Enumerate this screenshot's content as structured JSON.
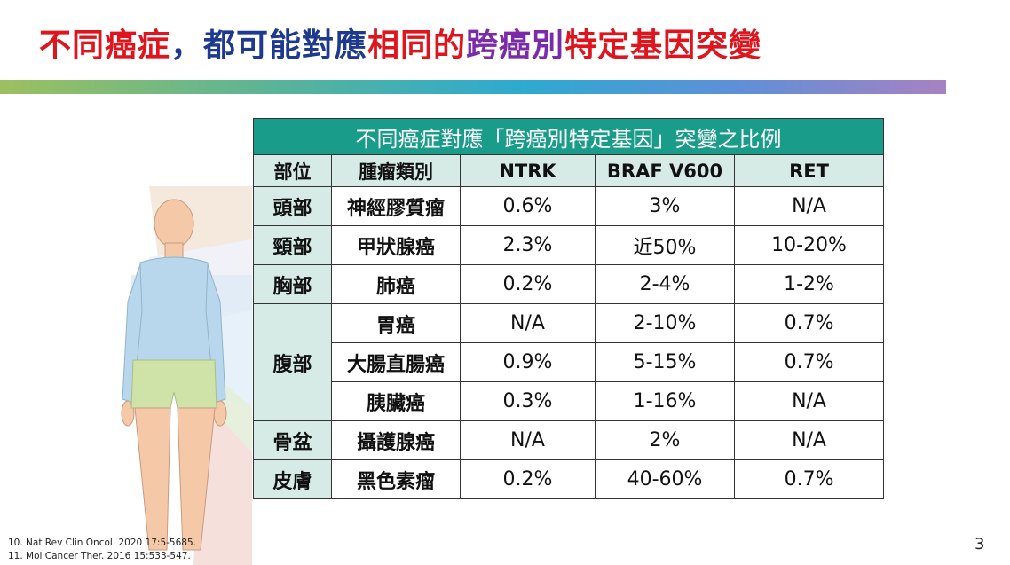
{
  "title": {
    "part1": "不同癌症",
    "part2": "，都可能對應",
    "part3": "相同的",
    "part4": "跨癌別",
    "part5": "特定基因突變"
  },
  "table": {
    "caption": "不同癌症對應「跨癌別特定基因」突變之比例",
    "headers": [
      "部位",
      "腫瘤類別",
      "NTRK",
      "BRAF V600",
      "RET"
    ],
    "rows": [
      {
        "region": "頭部",
        "cancer": "神經膠質瘤",
        "ntrk": "0.6%",
        "braf": "3%",
        "ret": "N/A"
      },
      {
        "region": "頸部",
        "cancer": "甲狀腺癌",
        "ntrk": "2.3%",
        "braf": "近50%",
        "ret": "10-20%"
      },
      {
        "region": "胸部",
        "cancer": "肺癌",
        "ntrk": "0.2%",
        "braf": "2-4%",
        "ret": "1-2%"
      },
      {
        "region": "腹部",
        "cancer": "胃癌",
        "ntrk": "N/A",
        "braf": "2-10%",
        "ret": "0.7%"
      },
      {
        "region": "",
        "cancer": "大腸直腸癌",
        "ntrk": "0.9%",
        "braf": "5-15%",
        "ret": "0.7%"
      },
      {
        "region": "",
        "cancer": "胰臟癌",
        "ntrk": "0.3%",
        "braf": "1-16%",
        "ret": "N/A"
      },
      {
        "region": "骨盆",
        "cancer": "攝護腺癌",
        "ntrk": "N/A",
        "braf": "2%",
        "ret": "N/A"
      },
      {
        "region": "皮膚",
        "cancer": "黑色素瘤",
        "ntrk": "0.2%",
        "braf": "40-60%",
        "ret": "0.7%"
      }
    ]
  },
  "references": [
    "10. Nat Rev Clin Oncol. 2020 17:5-5685.",
    "11. Mol Cancer Ther. 2016 15:533-547."
  ],
  "page_number": "3",
  "colors": {
    "title_red": "#e0141d",
    "title_navy": "#1d3a8f",
    "title_purple": "#7b2aa8",
    "table_caption_bg": "#1a9c8a",
    "table_header_bg": "#d6ebe5"
  }
}
